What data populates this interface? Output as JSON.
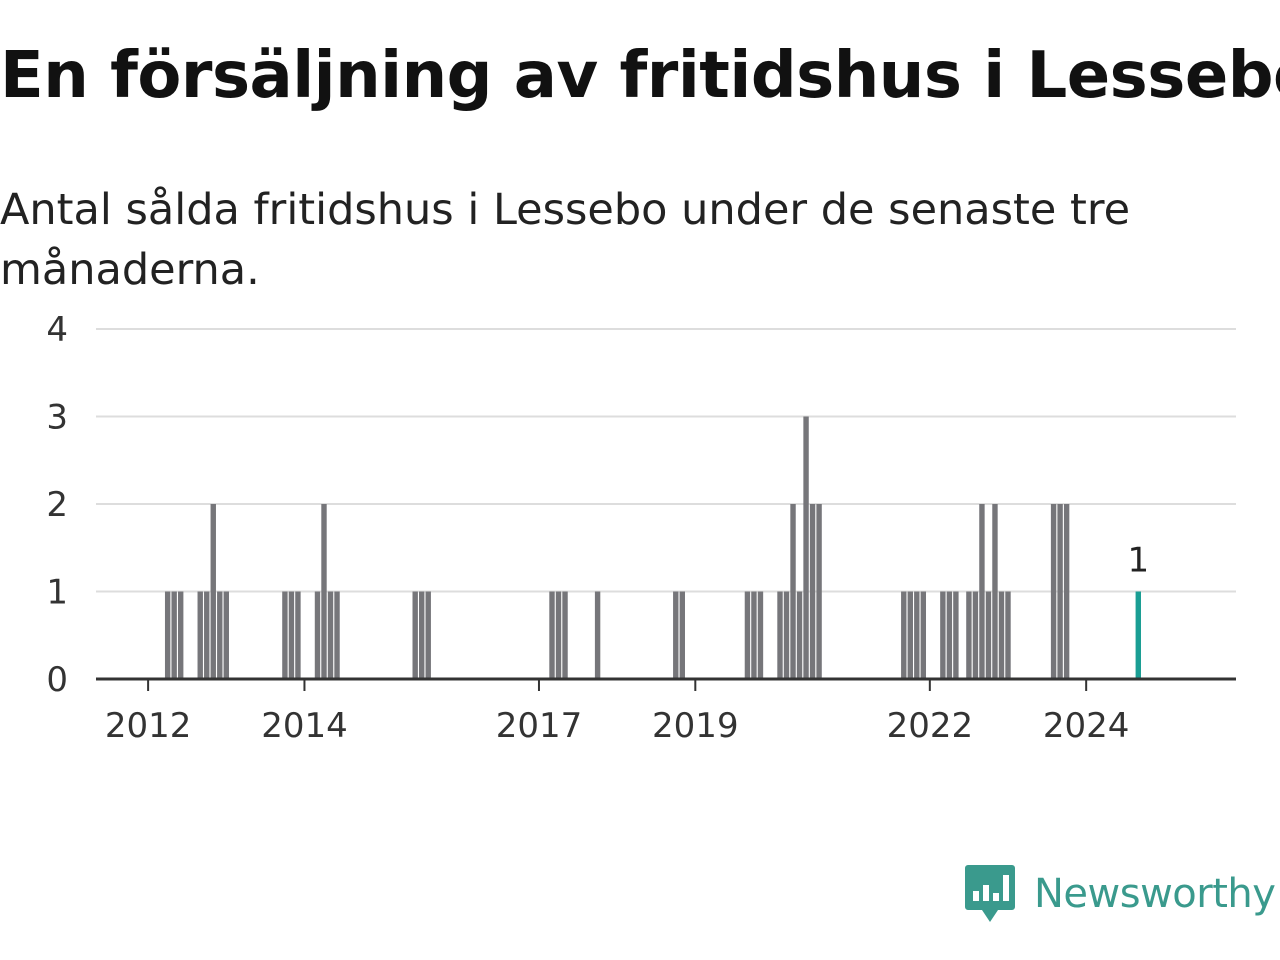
{
  "title": "En försäljning av fritidshus i Lessebo",
  "subtitle": "Antal sålda fritidshus i Lessebo under de senaste tre månaderna.",
  "brand": {
    "name": "Newsworthy",
    "color": "#3a9a8d",
    "icon": "newsworthy-logo-icon"
  },
  "colors": {
    "bar": "#76767a",
    "highlight": "#1a9e94",
    "grid": "#dddddd",
    "axis": "#333333",
    "tick_text": "#333333"
  },
  "chart_data": {
    "type": "bar",
    "title": "En försäljning av fritidshus i Lessebo",
    "subtitle": "Antal sålda fritidshus i Lessebo under de senaste tre månaderna.",
    "xlabel": "",
    "ylabel": "",
    "ylim": [
      0,
      4
    ],
    "xlim": [
      "2011-05",
      "2025-12"
    ],
    "yticks": [
      0,
      1,
      2,
      3,
      4
    ],
    "xticks": [
      {
        "label": "2012",
        "date": "2012-01"
      },
      {
        "label": "2014",
        "date": "2014-01"
      },
      {
        "label": "2017",
        "date": "2017-01"
      },
      {
        "label": "2019",
        "date": "2019-01"
      },
      {
        "label": "2022",
        "date": "2022-01"
      },
      {
        "label": "2024",
        "date": "2024-01"
      }
    ],
    "grid": true,
    "legend": "none",
    "series": [
      {
        "points": [
          {
            "date": "2012-04",
            "value": 1
          },
          {
            "date": "2012-05",
            "value": 1
          },
          {
            "date": "2012-06",
            "value": 1
          },
          {
            "date": "2012-09",
            "value": 1
          },
          {
            "date": "2012-10",
            "value": 1
          },
          {
            "date": "2012-11",
            "value": 2
          },
          {
            "date": "2012-12",
            "value": 1
          },
          {
            "date": "2013-01",
            "value": 1
          },
          {
            "date": "2013-10",
            "value": 1
          },
          {
            "date": "2013-11",
            "value": 1
          },
          {
            "date": "2013-12",
            "value": 1
          },
          {
            "date": "2014-03",
            "value": 1
          },
          {
            "date": "2014-04",
            "value": 2
          },
          {
            "date": "2014-05",
            "value": 1
          },
          {
            "date": "2014-06",
            "value": 1
          },
          {
            "date": "2015-06",
            "value": 1
          },
          {
            "date": "2015-07",
            "value": 1
          },
          {
            "date": "2015-08",
            "value": 1
          },
          {
            "date": "2017-03",
            "value": 1
          },
          {
            "date": "2017-04",
            "value": 1
          },
          {
            "date": "2017-05",
            "value": 1
          },
          {
            "date": "2017-10",
            "value": 1
          },
          {
            "date": "2018-10",
            "value": 1
          },
          {
            "date": "2018-11",
            "value": 1
          },
          {
            "date": "2019-09",
            "value": 1
          },
          {
            "date": "2019-10",
            "value": 1
          },
          {
            "date": "2019-11",
            "value": 1
          },
          {
            "date": "2020-02",
            "value": 1
          },
          {
            "date": "2020-03",
            "value": 1
          },
          {
            "date": "2020-04",
            "value": 2
          },
          {
            "date": "2020-05",
            "value": 1
          },
          {
            "date": "2020-06",
            "value": 3
          },
          {
            "date": "2020-07",
            "value": 2
          },
          {
            "date": "2020-08",
            "value": 2
          },
          {
            "date": "2021-09",
            "value": 1
          },
          {
            "date": "2021-10",
            "value": 1
          },
          {
            "date": "2021-11",
            "value": 1
          },
          {
            "date": "2021-12",
            "value": 1
          },
          {
            "date": "2022-03",
            "value": 1
          },
          {
            "date": "2022-04",
            "value": 1
          },
          {
            "date": "2022-05",
            "value": 1
          },
          {
            "date": "2022-07",
            "value": 1
          },
          {
            "date": "2022-08",
            "value": 1
          },
          {
            "date": "2022-09",
            "value": 2
          },
          {
            "date": "2022-10",
            "value": 1
          },
          {
            "date": "2022-11",
            "value": 2
          },
          {
            "date": "2022-12",
            "value": 1
          },
          {
            "date": "2023-01",
            "value": 1
          },
          {
            "date": "2023-08",
            "value": 2
          },
          {
            "date": "2023-09",
            "value": 2
          },
          {
            "date": "2023-10",
            "value": 2
          },
          {
            "date": "2024-09",
            "value": 1,
            "highlight": true,
            "label": "1"
          }
        ]
      }
    ]
  }
}
